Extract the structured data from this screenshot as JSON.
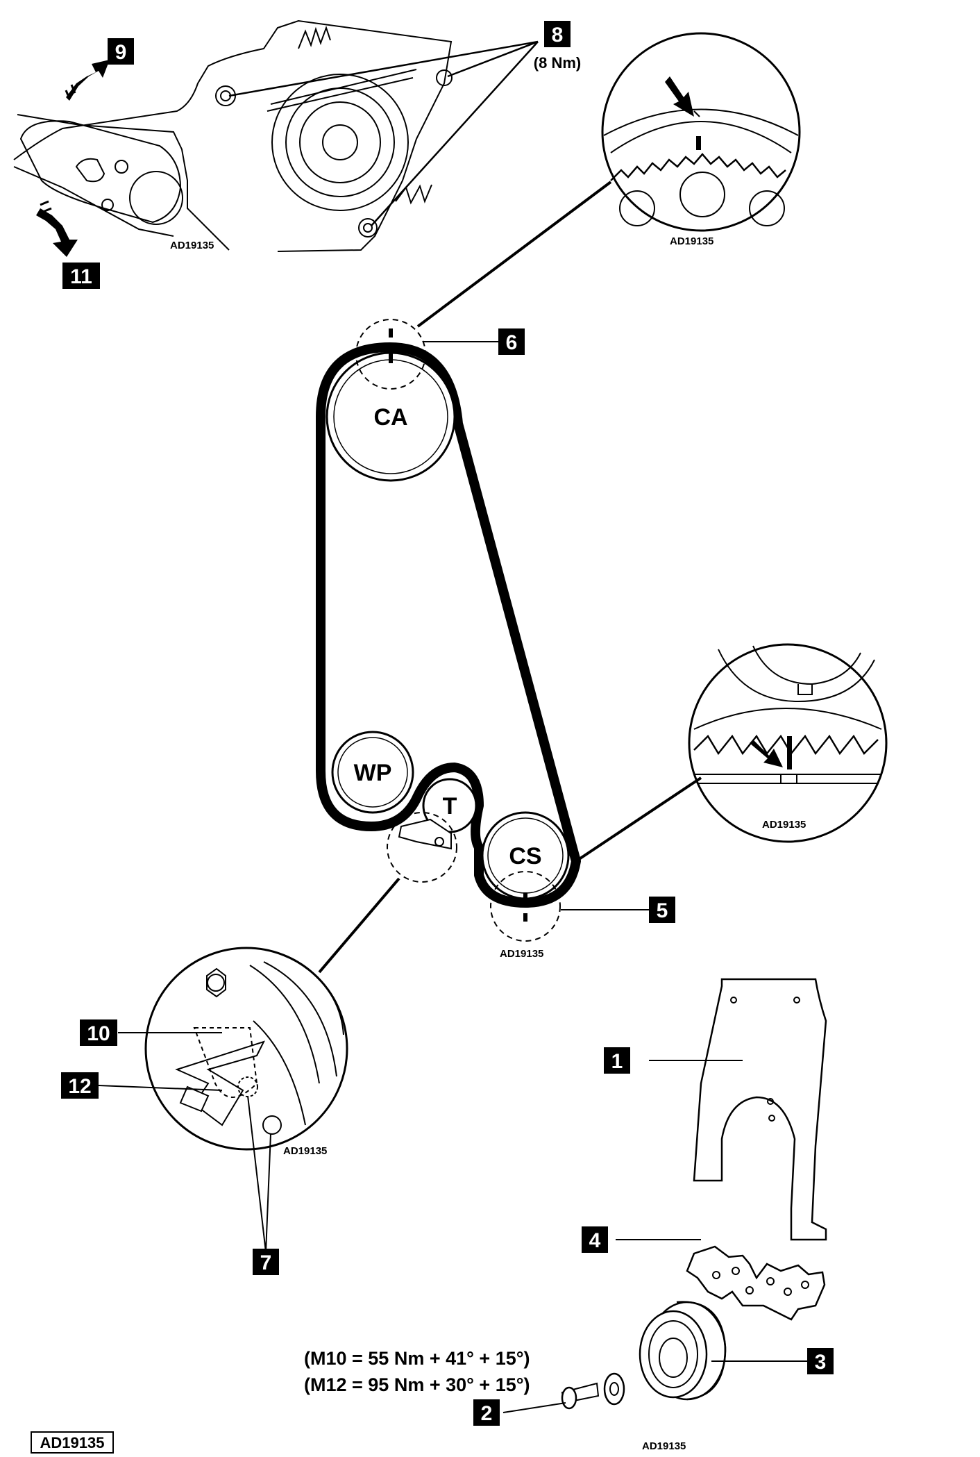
{
  "drawing_ref": "AD19135",
  "callouts": {
    "c1": "1",
    "c2": "2",
    "c3": "3",
    "c4": "4",
    "c5": "5",
    "c6": "6",
    "c7": "7",
    "c8": "8",
    "c9": "9",
    "c10": "10",
    "c11": "11",
    "c12": "12"
  },
  "callout_8_note": "(8 Nm)",
  "pulleys": {
    "camshaft": "CA",
    "water_pump": "WP",
    "tensioner": "T",
    "crankshaft": "CS"
  },
  "inset_codes": {
    "tensioner_view": "AD19135",
    "cam_mark": "AD19135",
    "crank_mark": "AD19135",
    "crank_circle": "AD19135",
    "tensioner_detail": "AD19135",
    "pulley_part": "AD19135"
  },
  "torque": {
    "m10": "(M10 = 55 Nm + 41° + 15°)",
    "m12": "(M12 = 95 Nm + 30° + 15°)"
  },
  "colors": {
    "ink": "#000000",
    "paper": "#ffffff"
  }
}
